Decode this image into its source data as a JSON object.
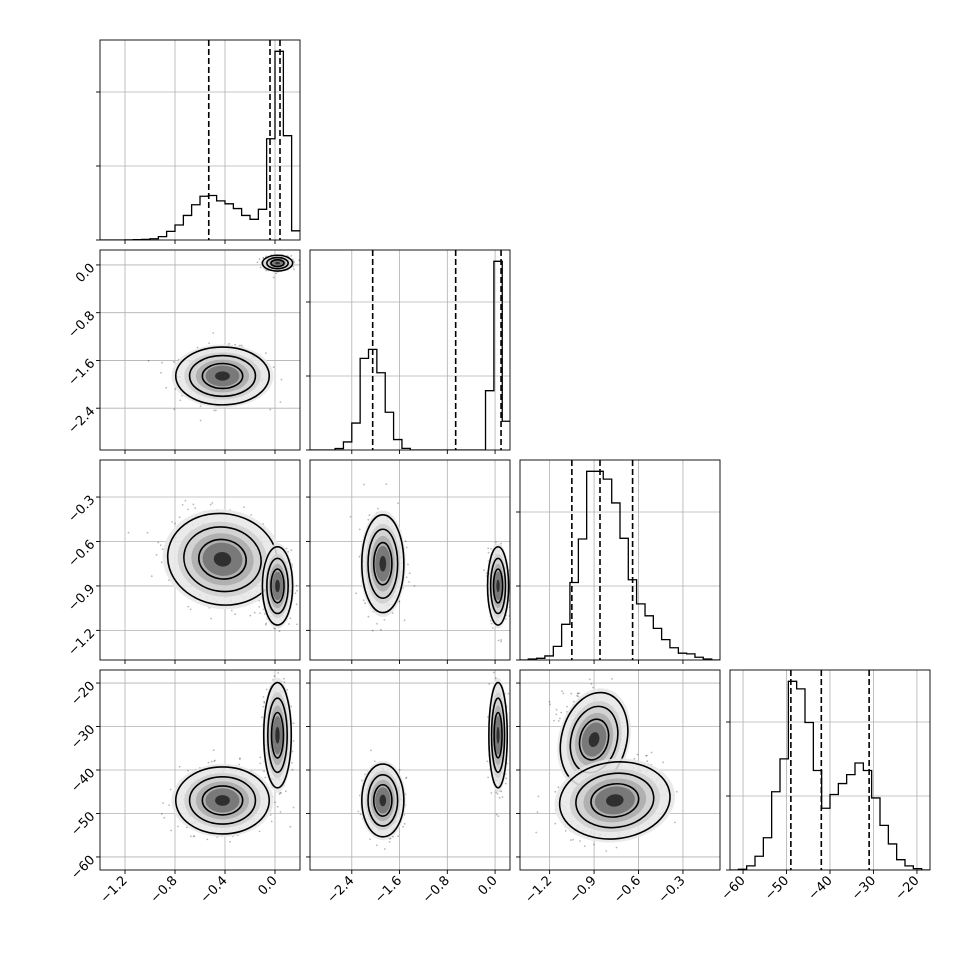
{
  "chart_data": {
    "type": "corner",
    "grid": true,
    "parameters": [
      {
        "range": [
          -1.4,
          0.2
        ],
        "ticks": [
          -1.2,
          -0.8,
          -0.4,
          0.0
        ],
        "tick_labels": [
          "−1.2",
          "−0.8",
          "−0.4",
          "0.0"
        ]
      },
      {
        "range": [
          -3.1,
          0.25
        ],
        "ticks": [
          -2.4,
          -1.6,
          -0.8,
          0.0
        ],
        "tick_labels": [
          "−2.4",
          "−1.6",
          "−0.8",
          "0.0"
        ]
      },
      {
        "range": [
          -1.4,
          -0.05
        ],
        "ticks": [
          -1.2,
          -0.9,
          -0.6,
          -0.3
        ],
        "tick_labels": [
          "−1.2",
          "−0.9",
          "−0.6",
          "−0.3"
        ]
      },
      {
        "range": [
          -63,
          -17
        ],
        "ticks": [
          -60,
          -50,
          -40,
          -30,
          -20
        ],
        "tick_labels": [
          "−60",
          "−50",
          "−40",
          "−30",
          "−20"
        ]
      }
    ],
    "histograms": [
      {
        "param": 0,
        "edges": [
          -1.4,
          -1.333,
          -1.267,
          -1.2,
          -1.133,
          -1.067,
          -1,
          -0.933,
          -0.867,
          -0.8,
          -0.733,
          -0.667,
          -0.6,
          -0.533,
          -0.467,
          -0.4,
          -0.333,
          -0.267,
          -0.2,
          -0.133,
          -0.067,
          0,
          0.067,
          0.133,
          0.2
        ],
        "counts": [
          0,
          0,
          0,
          1,
          2,
          4,
          8,
          22,
          56,
          98,
          160,
          230,
          285,
          290,
          255,
          236,
          205,
          160,
          135,
          200,
          660,
          1230,
          680,
          60
        ],
        "quantiles": [
          -0.53,
          -0.04,
          0.04
        ]
      },
      {
        "param": 1,
        "edges": [
          -3.1,
          -2.96,
          -2.82,
          -2.68,
          -2.54,
          -2.4,
          -2.26,
          -2.12,
          -1.98,
          -1.84,
          -1.7,
          -1.56,
          -1.42,
          -1.28,
          -1.14,
          -1,
          -0.86,
          -0.72,
          -0.58,
          -0.44,
          -0.3,
          -0.16,
          -0.02,
          0.12,
          0.25
        ],
        "counts": [
          0,
          0,
          0,
          8,
          45,
          150,
          510,
          560,
          430,
          210,
          58,
          9,
          0,
          0,
          0,
          0,
          0,
          0,
          0,
          0,
          0,
          330,
          1050,
          160
        ],
        "quantiles": [
          -2.05,
          -0.66,
          0.1
        ]
      },
      {
        "param": 2,
        "edges": [
          -1.4,
          -1.344,
          -1.288,
          -1.232,
          -1.175,
          -1.119,
          -1.063,
          -1.006,
          -0.95,
          -0.894,
          -0.838,
          -0.781,
          -0.725,
          -0.669,
          -0.613,
          -0.556,
          -0.5,
          -0.444,
          -0.388,
          -0.331,
          -0.275,
          -0.219,
          -0.163,
          -0.106,
          -0.05
        ],
        "counts": [
          0,
          3,
          5,
          12,
          40,
          105,
          228,
          356,
          555,
          555,
          532,
          462,
          358,
          236,
          165,
          130,
          93,
          60,
          36,
          20,
          18,
          8,
          3,
          0
        ],
        "quantiles": [
          -1.05,
          -0.86,
          -0.64
        ]
      },
      {
        "param": 3,
        "edges": [
          -63,
          -61.08,
          -59.17,
          -57.25,
          -55.33,
          -53.42,
          -51.5,
          -49.58,
          -47.67,
          -45.75,
          -43.83,
          -41.92,
          -40,
          -38.08,
          -36.17,
          -34.25,
          -32.33,
          -30.42,
          -28.5,
          -26.58,
          -24.67,
          -22.75,
          -20.83,
          -18.92,
          -17
        ],
        "counts": [
          0,
          2,
          12,
          40,
          94,
          228,
          324,
          550,
          528,
          430,
          290,
          180,
          220,
          252,
          278,
          312,
          290,
          210,
          130,
          76,
          30,
          12,
          4,
          0
        ],
        "quantiles": [
          -49,
          -42,
          -31
        ]
      }
    ],
    "joint": [
      {
        "row": 1,
        "col": 0,
        "modes": [
          {
            "center": [
              -0.42,
              -1.86
            ],
            "sx": 0.17,
            "sy": 0.22,
            "weight": 0.55
          },
          {
            "center": [
              0.02,
              0.03
            ],
            "sx": 0.055,
            "sy": 0.06,
            "weight": 0.45
          }
        ]
      },
      {
        "row": 2,
        "col": 0,
        "modes": [
          {
            "center": [
              -0.42,
              -0.72
            ],
            "sx": 0.2,
            "sy": 0.14,
            "rho": -0.3,
            "weight": 0.55
          },
          {
            "center": [
              0.02,
              -0.9
            ],
            "sx": 0.055,
            "sy": 0.12,
            "weight": 0.45
          }
        ]
      },
      {
        "row": 2,
        "col": 1,
        "modes": [
          {
            "center": [
              -1.88,
              -0.75
            ],
            "sx": 0.16,
            "sy": 0.15,
            "weight": 0.55
          },
          {
            "center": [
              0.05,
              -0.9
            ],
            "sx": 0.08,
            "sy": 0.12,
            "weight": 0.45
          }
        ]
      },
      {
        "row": 3,
        "col": 0,
        "modes": [
          {
            "center": [
              -0.42,
              -47
            ],
            "sx": 0.17,
            "sy": 3.5,
            "weight": 0.55
          },
          {
            "center": [
              0.02,
              -32
            ],
            "sx": 0.05,
            "sy": 5.5,
            "weight": 0.45
          }
        ]
      },
      {
        "row": 3,
        "col": 1,
        "modes": [
          {
            "center": [
              -1.88,
              -47
            ],
            "sx": 0.16,
            "sy": 3.8,
            "weight": 0.55
          },
          {
            "center": [
              0.05,
              -32
            ],
            "sx": 0.07,
            "sy": 5.5,
            "weight": 0.45
          }
        ]
      },
      {
        "row": 3,
        "col": 2,
        "modes": [
          {
            "center": [
              -0.9,
              -33
            ],
            "sx": 0.1,
            "sy": 5,
            "rho": -0.3,
            "weight": 0.45
          },
          {
            "center": [
              -0.76,
              -47
            ],
            "sx": 0.17,
            "sy": 4,
            "rho": 0.3,
            "weight": 0.55
          }
        ]
      }
    ],
    "contour_levels": [
      0.12,
      0.35,
      0.6
    ]
  }
}
